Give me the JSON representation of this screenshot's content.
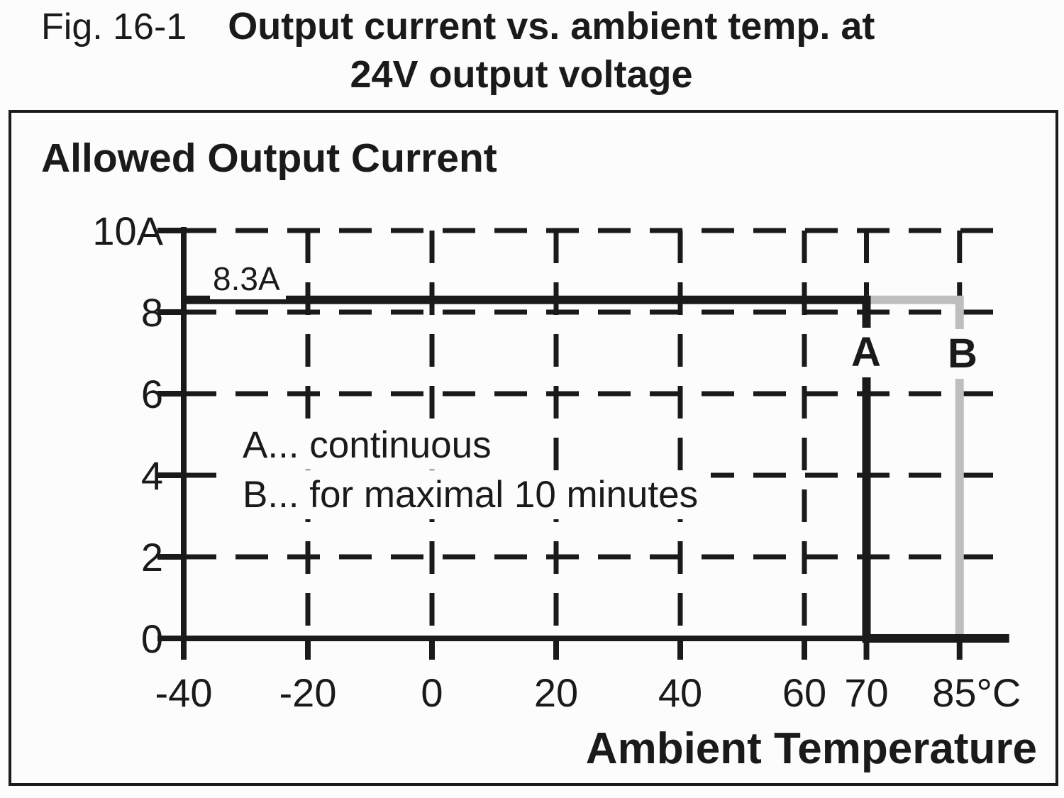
{
  "title": {
    "fig_label": "Fig. 16-1",
    "line1": "Output current vs. ambient temp. at",
    "line2": "24V output voltage"
  },
  "colors": {
    "ink": "#1a1a1a",
    "series_a": "#1a1a1a",
    "series_b": "#bebebe",
    "background": "#fcfcfc"
  },
  "chart_data": {
    "type": "line",
    "title": "Allowed Output Current",
    "xlabel": "Ambient Temperature",
    "x_unit": "°C",
    "y_unit": "A",
    "xlim": [
      -40,
      93
    ],
    "ylim": [
      0,
      10
    ],
    "grid": {
      "style": "dashed",
      "x_values": [
        -20,
        0,
        20,
        40,
        60,
        70,
        85
      ],
      "y_values": [
        2,
        4,
        6,
        8,
        10
      ]
    },
    "x_ticks": [
      {
        "value": -40,
        "label": "-40"
      },
      {
        "value": -20,
        "label": "-20"
      },
      {
        "value": 0,
        "label": "0"
      },
      {
        "value": 20,
        "label": "20"
      },
      {
        "value": 40,
        "label": "40"
      },
      {
        "value": 60,
        "label": "60"
      },
      {
        "value": 70,
        "label": "70"
      },
      {
        "value": 85,
        "label": "85°C"
      }
    ],
    "y_ticks": [
      {
        "value": 0,
        "label": "0"
      },
      {
        "value": 2,
        "label": "2"
      },
      {
        "value": 4,
        "label": "4"
      },
      {
        "value": 6,
        "label": "6"
      },
      {
        "value": 8,
        "label": "8"
      },
      {
        "value": 10,
        "label": "10A"
      }
    ],
    "annotations": [
      {
        "text": "8.3A",
        "x": -35,
        "y": 8.65
      }
    ],
    "series": [
      {
        "name": "A",
        "label": "A",
        "legend": "A... continuous",
        "color": "#1a1a1a",
        "points": [
          [
            -40,
            8.3
          ],
          [
            70,
            8.3
          ],
          [
            70,
            0
          ],
          [
            93,
            0
          ]
        ]
      },
      {
        "name": "B",
        "label": "B",
        "legend": "B... for maximal 10 minutes",
        "color": "#bebebe",
        "points": [
          [
            70,
            8.3
          ],
          [
            85,
            8.3
          ],
          [
            85,
            0
          ]
        ]
      }
    ]
  }
}
